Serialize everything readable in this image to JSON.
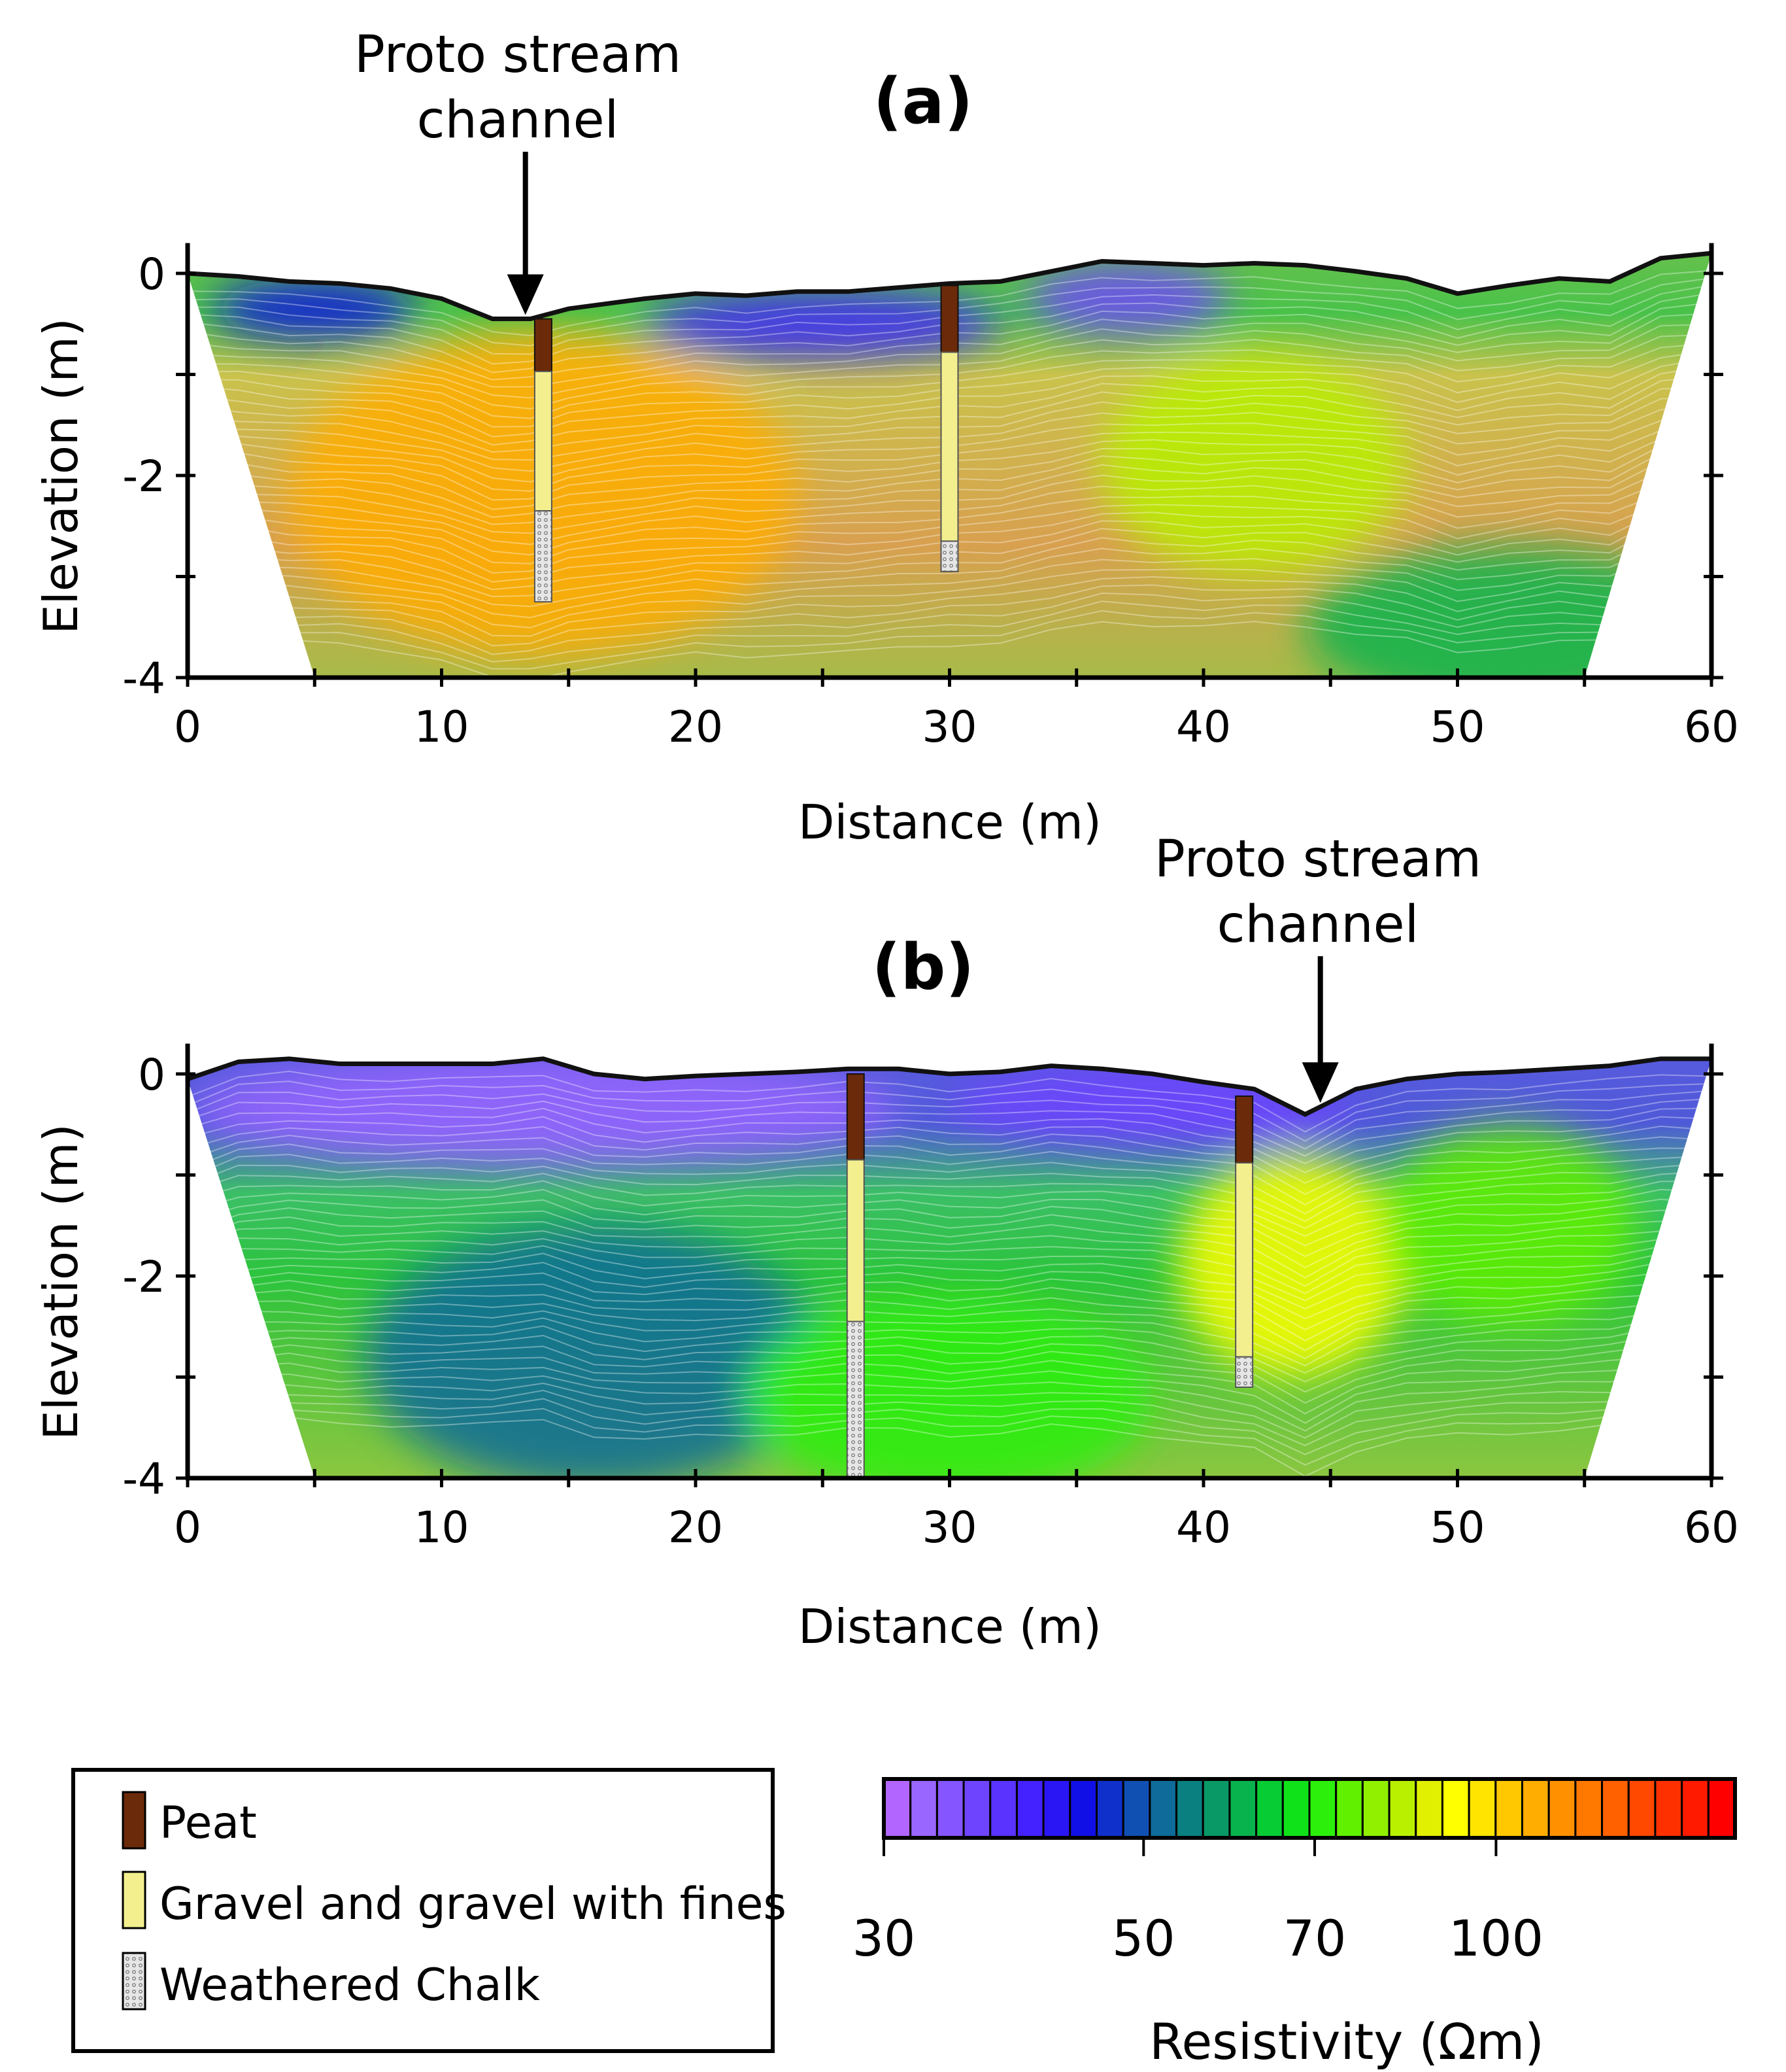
{
  "chart_data": [
    {
      "type": "heatmap",
      "panel_label": "(a)",
      "xlabel": "Distance (m)",
      "ylabel": "Elevation (m)",
      "xlim": [
        0,
        60
      ],
      "ylim": [
        -4,
        0.3
      ],
      "xticks": [
        "0",
        "10",
        "20",
        "30",
        "40",
        "50",
        "60"
      ],
      "yticks": [
        "0",
        "-2",
        "-4"
      ],
      "surface": {
        "x": [
          0,
          2,
          4,
          6,
          8,
          10,
          12,
          13.5,
          15,
          18,
          20,
          22,
          24,
          26,
          28,
          30,
          32,
          34,
          36,
          38,
          40,
          42,
          44,
          46,
          48,
          50,
          52,
          54,
          56,
          58,
          60
        ],
        "y": [
          0,
          -0.03,
          -0.08,
          -0.1,
          -0.15,
          -0.25,
          -0.45,
          -0.45,
          -0.35,
          -0.25,
          -0.2,
          -0.22,
          -0.18,
          -0.18,
          -0.14,
          -0.1,
          -0.08,
          0.02,
          0.12,
          0.1,
          0.08,
          0.1,
          0.08,
          0.02,
          -0.05,
          -0.2,
          -0.12,
          -0.05,
          -0.08,
          0.15,
          0.2
        ]
      },
      "base_x": [
        5,
        55
      ],
      "annotation": {
        "text_line1": "Proto stream",
        "text_line2": "channel",
        "x": 13.3
      },
      "boreholes": [
        {
          "x": 14,
          "top": -0.45,
          "peat_base": -0.97,
          "gravel_base": -2.35,
          "base": -3.25
        },
        {
          "x": 30,
          "top": -0.12,
          "peat_base": -0.78,
          "gravel_base": -2.65,
          "base": -2.95
        }
      ],
      "resistivity_zones": [
        {
          "cx": 14,
          "cy": -2.2,
          "value": 110,
          "rx": 10,
          "ry": 1.6
        },
        {
          "cx": 42,
          "cy": -1.9,
          "value": 85,
          "rx": 6,
          "ry": 1.1
        },
        {
          "cx": 52,
          "cy": -3.5,
          "value": 60,
          "rx": 8,
          "ry": 0.8
        },
        {
          "cx": 37,
          "cy": -0.25,
          "value": 36,
          "rx": 4,
          "ry": 0.35
        },
        {
          "cx": 25,
          "cy": -0.5,
          "value": 40,
          "rx": 7,
          "ry": 0.35
        },
        {
          "cx": 5,
          "cy": -0.35,
          "value": 44,
          "rx": 4,
          "ry": 0.3
        }
      ]
    },
    {
      "type": "heatmap",
      "panel_label": "(b)",
      "xlabel": "Distance (m)",
      "ylabel": "Elevation (m)",
      "xlim": [
        0,
        60
      ],
      "ylim": [
        -4,
        0.3
      ],
      "xticks": [
        "0",
        "10",
        "20",
        "30",
        "40",
        "50",
        "60"
      ],
      "yticks": [
        "0",
        "-2",
        "-4"
      ],
      "surface": {
        "x": [
          0,
          2,
          4,
          6,
          8,
          10,
          12,
          14,
          16,
          18,
          20,
          22,
          24,
          26,
          28,
          30,
          32,
          34,
          36,
          38,
          40,
          42,
          44,
          46,
          48,
          50,
          52,
          54,
          56,
          58,
          60
        ],
        "y": [
          -0.05,
          0.12,
          0.15,
          0.1,
          0.1,
          0.1,
          0.1,
          0.15,
          0.0,
          -0.05,
          -0.02,
          0.0,
          0.02,
          0.05,
          0.05,
          0.0,
          0.02,
          0.08,
          0.05,
          0.0,
          -0.08,
          -0.15,
          -0.4,
          -0.15,
          -0.05,
          0.0,
          0.02,
          0.05,
          0.08,
          0.15,
          0.15
        ]
      },
      "base_x": [
        5,
        55
      ],
      "annotation": {
        "text_line1": "Proto stream",
        "text_line2": "channel",
        "x": 44.6
      },
      "boreholes": [
        {
          "x": 26.3,
          "top": 0.0,
          "peat_base": -0.85,
          "gravel_base": -2.45,
          "base": -4.0
        },
        {
          "x": 41.6,
          "top": -0.22,
          "peat_base": -0.88,
          "gravel_base": -2.8,
          "base": -3.1
        }
      ],
      "resistivity_zones": [
        {
          "cx": 14,
          "cy": -0.35,
          "value": 32,
          "rx": 14,
          "ry": 0.55
        },
        {
          "cx": 38,
          "cy": -0.3,
          "value": 35,
          "rx": 8,
          "ry": 0.4
        },
        {
          "cx": 16,
          "cy": -2.8,
          "value": 52,
          "rx": 9,
          "ry": 1.3
        },
        {
          "cx": 43.5,
          "cy": -1.9,
          "value": 95,
          "rx": 4.5,
          "ry": 1.1
        },
        {
          "cx": 52,
          "cy": -1.5,
          "value": 75,
          "rx": 5,
          "ry": 1.0
        },
        {
          "cx": 30,
          "cy": -3.2,
          "value": 70,
          "rx": 8,
          "ry": 1.0
        }
      ]
    }
  ],
  "legend": {
    "items": [
      {
        "label": "Peat",
        "pattern": "peat"
      },
      {
        "label": "Gravel and gravel with fines",
        "pattern": "gravel"
      },
      {
        "label": "Weathered Chalk",
        "pattern": "chalk"
      }
    ]
  },
  "colorbar": {
    "title": "Resistivity (Ωm)",
    "tick_labels": [
      "30",
      "50",
      "70",
      "100"
    ],
    "tick_values": [
      30,
      50,
      70,
      100
    ],
    "scale": "log",
    "range": [
      30,
      160
    ],
    "colors": [
      "#b266ff",
      "#9966ff",
      "#8555ff",
      "#6f44ff",
      "#5a33ff",
      "#4422ff",
      "#2a15f5",
      "#1010e6",
      "#1030cc",
      "#1050b3",
      "#0f6b99",
      "#0a8080",
      "#099966",
      "#08b34d",
      "#08cc33",
      "#10e21a",
      "#2cf00c",
      "#60f000",
      "#90f000",
      "#b8f000",
      "#e0f000",
      "#ffff00",
      "#ffe400",
      "#ffc800",
      "#ffad00",
      "#ff9100",
      "#ff7800",
      "#ff6000",
      "#ff4800",
      "#ff3000",
      "#ff1a00",
      "#ff0000"
    ]
  },
  "colors": {
    "peat": "#6b2a0a",
    "gravel": "#f3ef8f",
    "chalk": "#d9d9d9"
  }
}
